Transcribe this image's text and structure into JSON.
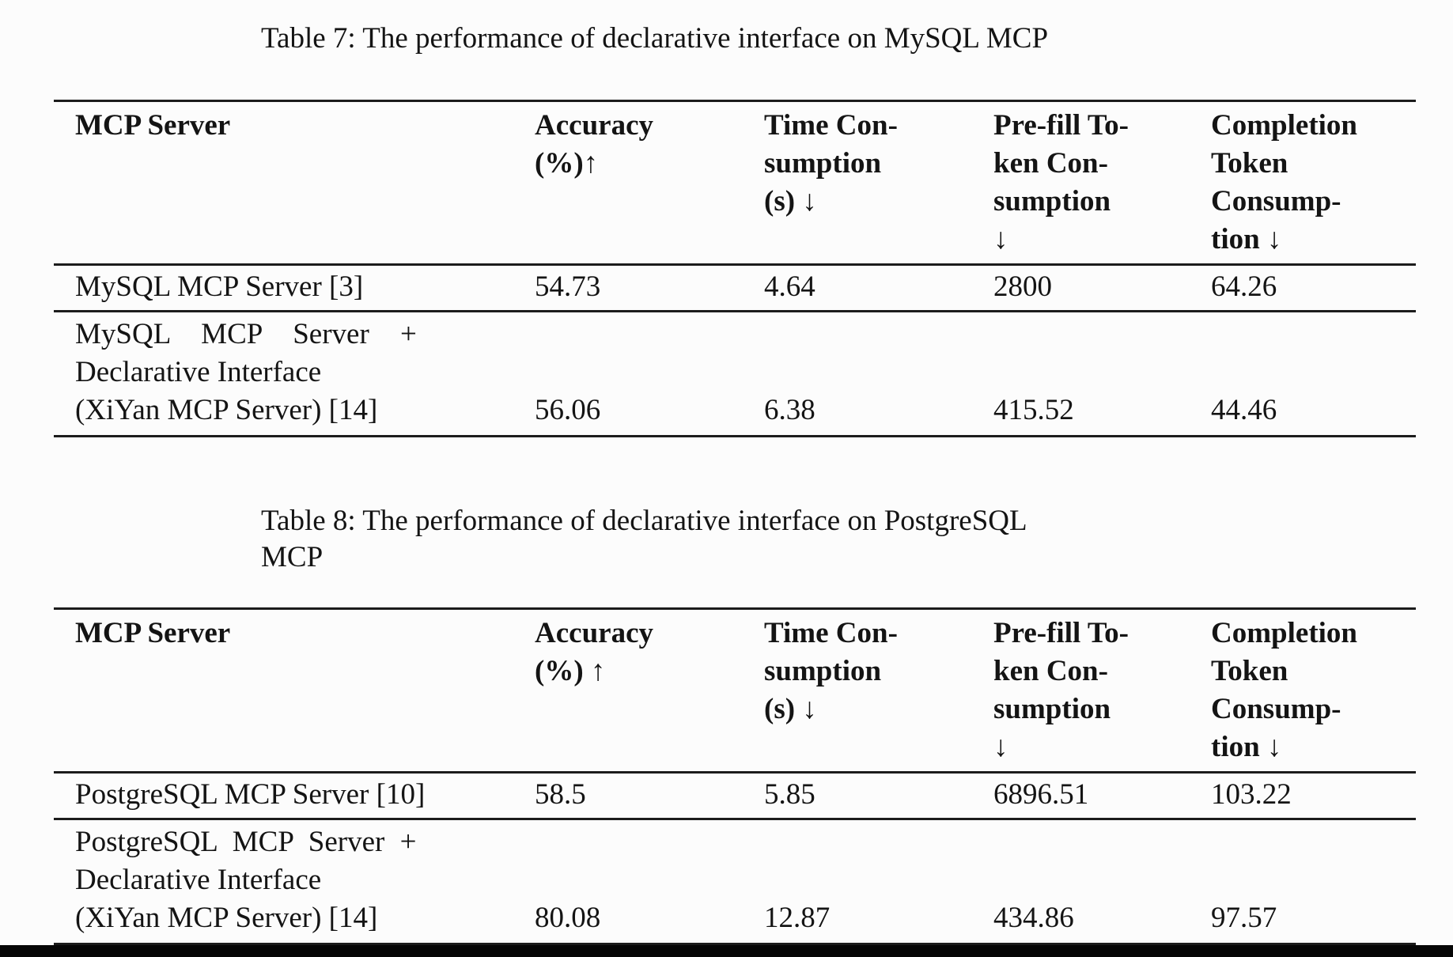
{
  "page": {
    "background_color": "#fcfcfc",
    "text_color": "#141414",
    "rule_color": "#1c1c1c",
    "bottom_bar_color": "#060606"
  },
  "tables": [
    {
      "caption_lines": [
        "Table 7:  The performance of declarative interface on MySQL MCP"
      ],
      "headers": {
        "server": "MCP Server",
        "accuracy": "Accuracy\n(%)↑",
        "time": "Time Con-\nsumption\n(s) ↓",
        "prefill": "Pre-fill To-\nken Con-\nsumption\n↓",
        "completion": "Completion\nToken\nConsump-\ntion ↓"
      },
      "row_baseline": {
        "server": "MySQL MCP Server [3]",
        "accuracy": "54.73",
        "time": "4.64",
        "prefill": "2800",
        "completion": "64.26"
      },
      "row_declarative": {
        "server_lines": [
          "MySQL MCP Server +",
          "Declarative Interface",
          "(XiYan MCP Server) [14]"
        ],
        "accuracy": "56.06",
        "time": "6.38",
        "prefill": "415.52",
        "completion": "44.46"
      }
    },
    {
      "caption_lines": [
        "Table 8:  The performance of declarative interface on PostgreSQL",
        "MCP"
      ],
      "headers": {
        "server": "MCP Server",
        "accuracy": "Accuracy\n(%) ↑",
        "time": "Time Con-\nsumption\n(s) ↓",
        "prefill": "Pre-fill To-\nken Con-\nsumption\n↓",
        "completion": "Completion\nToken\nConsump-\ntion ↓"
      },
      "row_baseline": {
        "server": "PostgreSQL MCP Server [10]",
        "accuracy": "58.5",
        "time": "5.85",
        "prefill": "6896.51",
        "completion": "103.22"
      },
      "row_declarative": {
        "server_lines": [
          "PostgreSQL MCP Server +",
          "Declarative Interface",
          "(XiYan MCP Server) [14]"
        ],
        "accuracy": "80.08",
        "time": "12.87",
        "prefill": "434.86",
        "completion": "97.57"
      }
    }
  ]
}
